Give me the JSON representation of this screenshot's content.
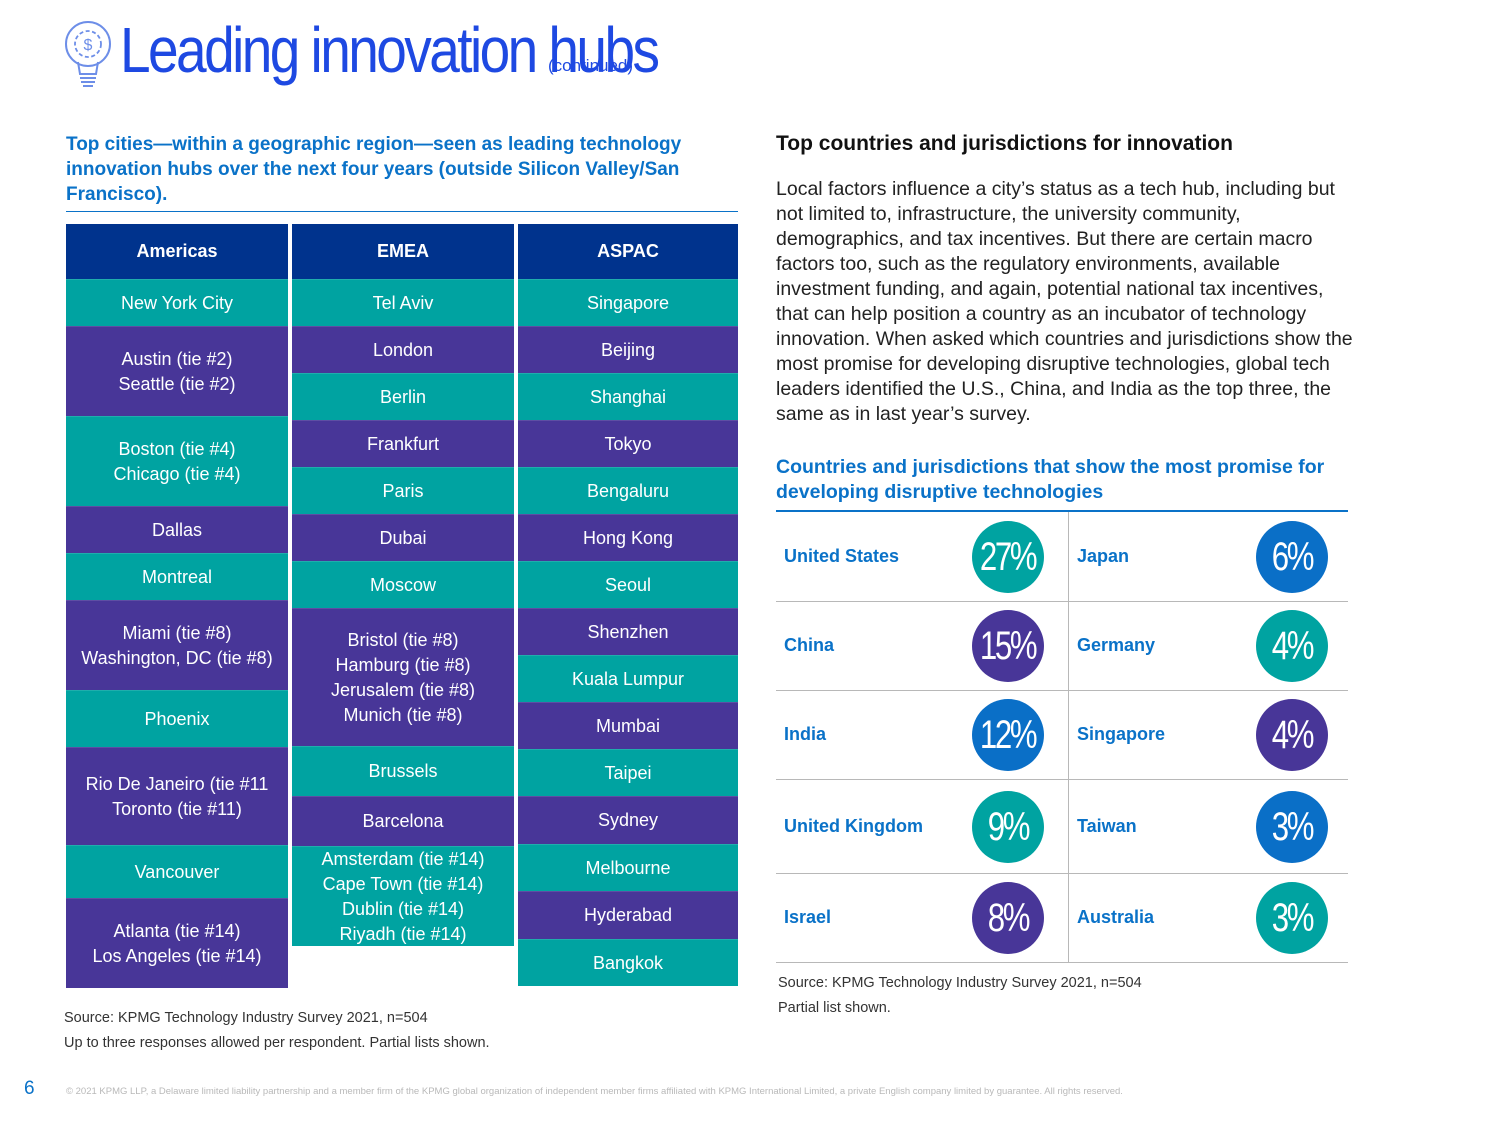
{
  "header": {
    "title": "Leading innovation hubs",
    "subtitle": "(continued)",
    "icon": "lightbulb-dollar-icon"
  },
  "left": {
    "heading": "Top cities—within a geographic region—seen as leading technology innovation hubs over the next four years (outside Silicon Valley/San Francisco).",
    "colors": {
      "header": "#00338d",
      "teal": "#00a3a1",
      "purple": "#483698"
    },
    "columns": [
      {
        "name": "Americas",
        "cells": [
          {
            "lines": [
              "New York City"
            ],
            "color": "teal"
          },
          {
            "lines": [
              "Austin (tie #2)",
              "Seattle (tie #2)"
            ],
            "color": "purple"
          },
          {
            "lines": [
              "Boston (tie #4)",
              "Chicago (tie #4)"
            ],
            "color": "teal"
          },
          {
            "lines": [
              "Dallas"
            ],
            "color": "purple"
          },
          {
            "lines": [
              "Montreal"
            ],
            "color": "teal"
          },
          {
            "lines": [
              "Miami (tie #8)",
              "Washington, DC (tie #8)"
            ],
            "color": "purple"
          },
          {
            "lines": [
              "Phoenix"
            ],
            "color": "teal"
          },
          {
            "lines": [
              "Rio De Janeiro (tie #11",
              "Toronto (tie #11)"
            ],
            "color": "purple"
          },
          {
            "lines": [
              "Vancouver"
            ],
            "color": "teal"
          },
          {
            "lines": [
              "Atlanta (tie #14)",
              "Los Angeles (tie #14)"
            ],
            "color": "purple"
          }
        ]
      },
      {
        "name": "EMEA",
        "cells": [
          {
            "lines": [
              "Tel Aviv"
            ],
            "color": "teal"
          },
          {
            "lines": [
              "London"
            ],
            "color": "purple"
          },
          {
            "lines": [
              "Berlin"
            ],
            "color": "teal"
          },
          {
            "lines": [
              "Frankfurt"
            ],
            "color": "purple"
          },
          {
            "lines": [
              "Paris"
            ],
            "color": "teal"
          },
          {
            "lines": [
              "Dubai"
            ],
            "color": "purple"
          },
          {
            "lines": [
              "Moscow"
            ],
            "color": "teal"
          },
          {
            "lines": [
              "Bristol (tie #8)",
              "Hamburg (tie #8)",
              "Jerusalem (tie #8)",
              "Munich (tie #8)"
            ],
            "color": "purple"
          },
          {
            "lines": [
              "Brussels"
            ],
            "color": "teal"
          },
          {
            "lines": [
              "Barcelona"
            ],
            "color": "purple"
          },
          {
            "lines": [
              "Amsterdam (tie #14)",
              "Cape Town (tie #14)",
              "Dublin (tie #14)",
              "Riyadh (tie #14)"
            ],
            "color": "teal"
          }
        ]
      },
      {
        "name": "ASPAC",
        "cells": [
          {
            "lines": [
              "Singapore"
            ],
            "color": "teal"
          },
          {
            "lines": [
              "Beijing"
            ],
            "color": "purple"
          },
          {
            "lines": [
              "Shanghai"
            ],
            "color": "teal"
          },
          {
            "lines": [
              "Tokyo"
            ],
            "color": "purple"
          },
          {
            "lines": [
              "Bengaluru"
            ],
            "color": "teal"
          },
          {
            "lines": [
              "Hong Kong"
            ],
            "color": "purple"
          },
          {
            "lines": [
              "Seoul"
            ],
            "color": "teal"
          },
          {
            "lines": [
              "Shenzhen"
            ],
            "color": "purple"
          },
          {
            "lines": [
              "Kuala Lumpur"
            ],
            "color": "teal"
          },
          {
            "lines": [
              "Mumbai"
            ],
            "color": "purple"
          },
          {
            "lines": [
              "Taipei"
            ],
            "color": "teal"
          },
          {
            "lines": [
              "Sydney"
            ],
            "color": "purple"
          },
          {
            "lines": [
              "Melbourne"
            ],
            "color": "teal"
          },
          {
            "lines": [
              "Hyderabad"
            ],
            "color": "purple"
          },
          {
            "lines": [
              "Bangkok"
            ],
            "color": "teal"
          }
        ]
      }
    ],
    "source_line1": "Source: KPMG Technology Industry Survey 2021, n=504",
    "source_line2": "Up to three responses allowed per respondent. Partial lists shown."
  },
  "right": {
    "heading": "Top countries and jurisdictions for innovation",
    "body": "Local factors influence a city’s status as a tech hub, including but not limited to, infrastructure, the university community, demographics, and tax incentives. But there are certain macro factors too, such as the regulatory environments, available investment funding, and again, potential national tax incentives, that can help position a country as an incubator of technology innovation. When asked which countries and jurisdictions show the most promise for developing disruptive technologies, global tech leaders identified the U.S., China, and India as the top three, the same as in last year’s survey.",
    "source_line1": "Source: KPMG Technology Industry Survey 2021, n=504",
    "source_line2": "Partial list shown."
  },
  "chart_data": {
    "type": "table",
    "title": "Countries and jurisdictions that show the most promise for developing disruptive technologies",
    "unit": "%",
    "colors": {
      "teal": "#00a3a1",
      "purple": "#483698",
      "blue": "#0a6fc7"
    },
    "items": [
      {
        "country": "United States",
        "value": 27,
        "label": "27%",
        "color": "teal"
      },
      {
        "country": "China",
        "value": 15,
        "label": "15%",
        "color": "purple"
      },
      {
        "country": "India",
        "value": 12,
        "label": "12%",
        "color": "blue"
      },
      {
        "country": "United Kingdom",
        "value": 9,
        "label": "9%",
        "color": "teal"
      },
      {
        "country": "Israel",
        "value": 8,
        "label": "8%",
        "color": "purple"
      },
      {
        "country": "Japan",
        "value": 6,
        "label": "6%",
        "color": "blue"
      },
      {
        "country": "Germany",
        "value": 4,
        "label": "4%",
        "color": "teal"
      },
      {
        "country": "Singapore",
        "value": 4,
        "label": "4%",
        "color": "purple"
      },
      {
        "country": "Taiwan",
        "value": 3,
        "label": "3%",
        "color": "blue"
      },
      {
        "country": "Australia",
        "value": 3,
        "label": "3%",
        "color": "teal"
      }
    ]
  },
  "footer": {
    "page_number": "6",
    "copyright": "© 2021 KPMG LLP, a Delaware limited liability partnership and a member firm of the KPMG global organization of independent member firms affiliated with KPMG International Limited, a private English company limited by guarantee. All rights reserved."
  }
}
